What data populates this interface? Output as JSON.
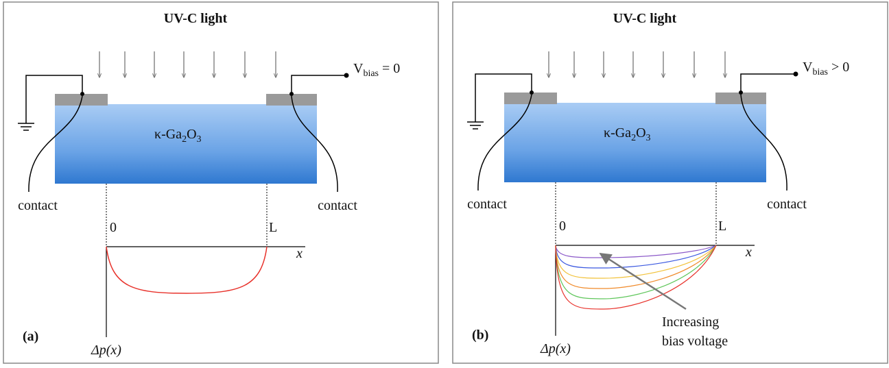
{
  "panels": [
    {
      "title": "UV-C light",
      "label": "(a)",
      "bias": {
        "symbol": "V",
        "subscript": "bias",
        "relation": "= 0"
      },
      "material": {
        "prefix": "κ-Ga",
        "sub1": "2",
        "middle": "O",
        "sub2": "3"
      },
      "contact_left": "contact",
      "contact_right": "contact",
      "origin": "0",
      "length": "L",
      "x_axis": "x",
      "y_axis": "Δp(x)"
    },
    {
      "title": "UV-C light",
      "label": "(b)",
      "bias": {
        "symbol": "V",
        "subscript": "bias",
        "relation": "> 0"
      },
      "material": {
        "prefix": "κ-Ga",
        "sub1": "2",
        "middle": "O",
        "sub2": "3"
      },
      "contact_left": "contact",
      "contact_right": "contact",
      "origin": "0",
      "length": "L",
      "x_axis": "x",
      "y_axis": "Δp(x)",
      "annotation": {
        "line1": "Increasing",
        "line2": "bias voltage"
      }
    }
  ]
}
